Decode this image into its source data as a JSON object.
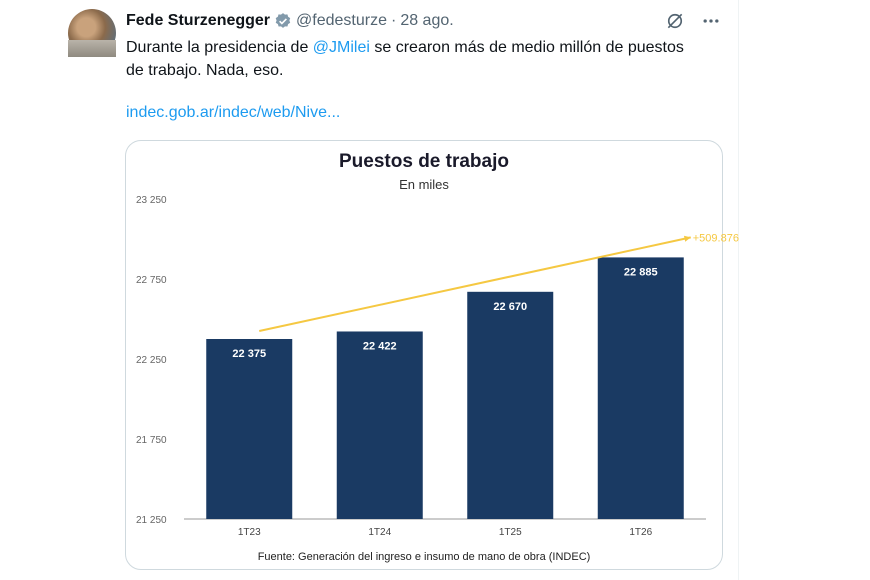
{
  "tweet": {
    "author_name": "Fede Sturzenegger",
    "handle": "@fedesturze",
    "separator": "·",
    "date": "28 ago.",
    "text_before_mention": "Durante la presidencia de ",
    "mention": "@JMilei",
    "text_after_mention": " se crearon más de medio millón de puestos de trabajo. Nada, eso.",
    "link": "indec.gob.ar/indec/web/Nive...",
    "icons": {
      "verified": "verified-badge-icon",
      "grok": "grok-icon",
      "more": "more-icon"
    }
  },
  "colors": {
    "bar": "#1a3a63",
    "trend": "#f5c842",
    "link": "#1d9bf0"
  },
  "chart_data": {
    "type": "bar",
    "title": "Puestos de trabajo",
    "subtitle": "En miles",
    "categories": [
      "1T23",
      "1T24",
      "1T25",
      "1T26"
    ],
    "values": [
      22375,
      22422,
      22670,
      22885
    ],
    "value_labels": [
      "22 375",
      "22 422",
      "22 670",
      "22 885"
    ],
    "yticks": [
      21250,
      21750,
      22250,
      22750,
      23250
    ],
    "ytick_labels": [
      "21 250",
      "21 750",
      "22 250",
      "22 750",
      "23 250"
    ],
    "ylim": [
      21250,
      23250
    ],
    "grid": false,
    "annotation": "+509.876",
    "source": "Fuente: Generación del ingreso e insumo de mano de obra (INDEC)"
  }
}
